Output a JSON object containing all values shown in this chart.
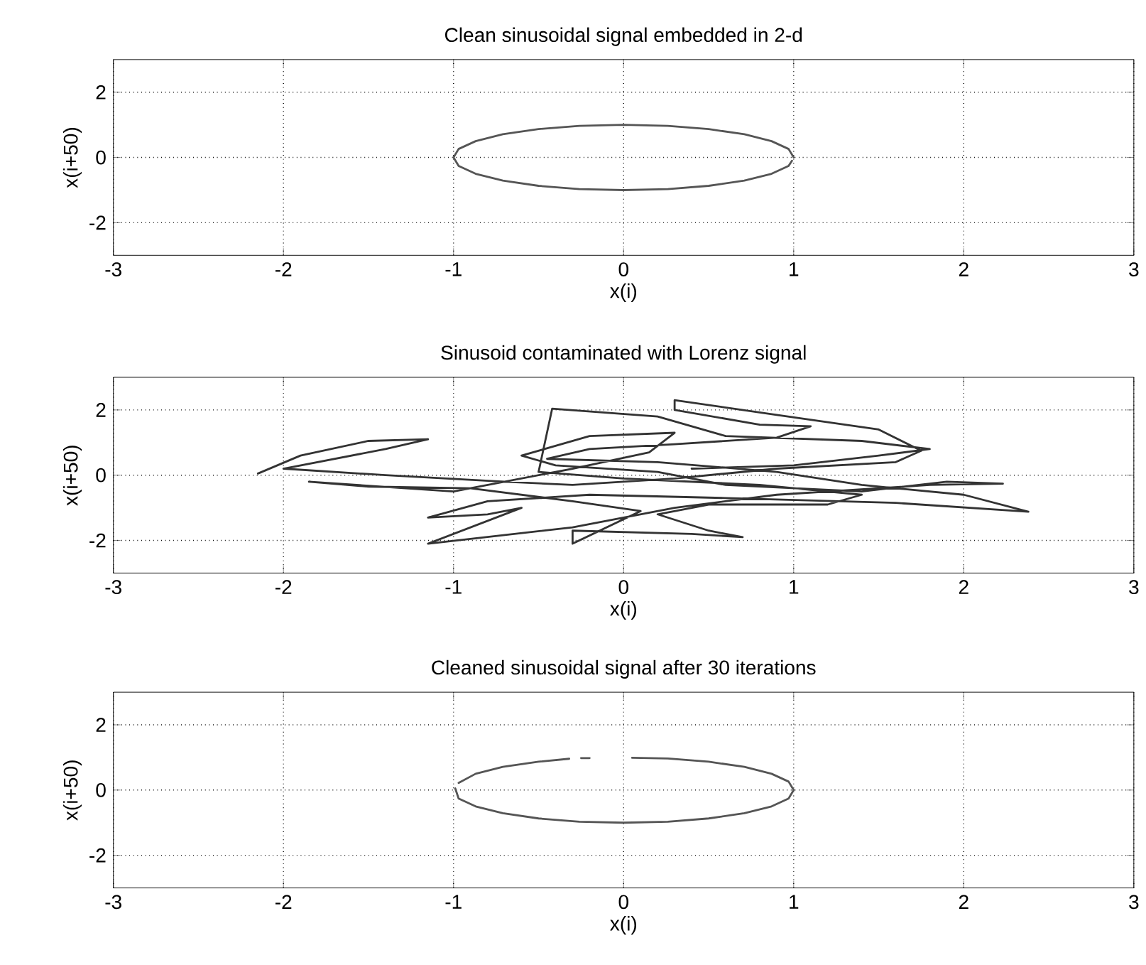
{
  "chart_data": [
    {
      "type": "line",
      "title": "Clean sinusoidal signal embedded in 2-d",
      "xlabel": "x(i)",
      "ylabel": "x(i+50)",
      "color": "#555555",
      "line_style": "solid",
      "grid": true,
      "xlim": [
        -3,
        3
      ],
      "ylim": [
        -3,
        3
      ],
      "xticks": [
        -3,
        -2,
        -1,
        0,
        1,
        2,
        3
      ],
      "yticks": [
        -2,
        0,
        2
      ],
      "x": [
        1,
        0.97,
        0.87,
        0.71,
        0.5,
        0.26,
        0,
        -0.26,
        -0.5,
        -0.71,
        -0.87,
        -0.97,
        -1,
        -0.97,
        -0.87,
        -0.71,
        -0.5,
        -0.26,
        0,
        0.26,
        0.5,
        0.71,
        0.87,
        0.97,
        0.99
      ],
      "values": [
        0,
        0.26,
        0.5,
        0.71,
        0.87,
        0.97,
        1,
        0.97,
        0.87,
        0.71,
        0.5,
        0.26,
        0,
        -0.26,
        -0.5,
        -0.71,
        -0.87,
        -0.97,
        -1,
        -0.97,
        -0.87,
        -0.71,
        -0.5,
        -0.26,
        -0.1
      ]
    },
    {
      "type": "line",
      "title": "Sinusoid contaminated with Lorenz signal",
      "xlabel": "x(i)",
      "ylabel": "x(i+50)",
      "color": "#333333",
      "line_style": "solid",
      "grid": true,
      "xlim": [
        -3,
        3
      ],
      "ylim": [
        -3,
        3
      ],
      "xticks": [
        -3,
        -2,
        -1,
        0,
        1,
        2,
        3
      ],
      "yticks": [
        -2,
        0,
        2
      ],
      "x": [
        -2.15,
        -1.9,
        -1.5,
        -1.15,
        -1.4,
        -2.0,
        -1.4,
        -0.7,
        -0.3,
        0.3,
        0.9,
        1.6,
        1.75,
        1.5,
        0.9,
        0.3,
        0.3,
        0.8,
        1.1,
        0.9,
        0.3,
        -0.2,
        -0.45,
        0.2,
        0.9,
        1.4,
        2.0,
        2.38,
        1.6,
        0.6,
        -0.2,
        -0.8,
        -1.15,
        -0.8,
        -0.6,
        -1.15,
        -0.3,
        0.3,
        0.9,
        1.8,
        2.23,
        1.9,
        1.4,
        0.6,
        0.2,
        -0.4,
        -0.6,
        -0.2,
        0.3,
        0.15,
        -0.3,
        -1.0,
        -1.85,
        -1.5,
        -0.9,
        -0.3,
        0.1,
        -0.3,
        -0.3,
        0.4,
        0.7,
        0.5,
        0.2,
        0.5,
        1.2,
        1.4,
        0.8,
        0.0,
        -0.5,
        -0.42,
        0.2,
        0.6,
        1.4,
        1.8,
        1.5,
        1.0,
        0.4
      ],
      "values": [
        0.05,
        0.6,
        1.05,
        1.1,
        0.8,
        0.2,
        0.0,
        -0.2,
        -0.3,
        -0.1,
        0.2,
        0.4,
        0.75,
        1.4,
        1.85,
        2.3,
        2.0,
        1.55,
        1.5,
        1.15,
        0.95,
        0.8,
        0.5,
        0.4,
        0.1,
        -0.3,
        -0.6,
        -1.12,
        -0.85,
        -0.7,
        -0.6,
        -0.8,
        -1.3,
        -1.2,
        -1.0,
        -2.1,
        -1.6,
        -1.0,
        -0.6,
        -0.3,
        -0.26,
        -0.2,
        -0.5,
        -0.3,
        0.1,
        0.3,
        0.6,
        1.2,
        1.3,
        0.7,
        0.2,
        -0.5,
        -0.2,
        -0.35,
        -0.4,
        -0.8,
        -1.1,
        -2.1,
        -1.7,
        -1.8,
        -1.9,
        -1.7,
        -1.2,
        -0.9,
        -0.9,
        -0.6,
        -0.3,
        -0.1,
        0.1,
        2.04,
        1.8,
        1.2,
        1.05,
        0.8,
        0.6,
        0.3,
        0.2
      ]
    },
    {
      "type": "line",
      "title": "Cleaned sinusoidal signal after 30 iterations",
      "xlabel": "x(i)",
      "ylabel": "x(i+50)",
      "color": "#555555",
      "line_style": "solid",
      "grid": true,
      "xlim": [
        -3,
        3
      ],
      "ylim": [
        -3,
        3
      ],
      "xticks": [
        -3,
        -2,
        -1,
        0,
        1,
        2,
        3
      ],
      "yticks": [
        -2,
        0,
        2
      ],
      "x": [
        -0.99,
        -0.97,
        -0.87,
        -0.71,
        -0.5,
        -0.26,
        0,
        0.26,
        0.5,
        0.71,
        0.87,
        0.97,
        1,
        0.97,
        0.87,
        0.71,
        0.5,
        0.26,
        0.05,
        null,
        -0.2,
        -0.25,
        null,
        -0.32,
        -0.5,
        -0.71,
        -0.87,
        -0.97
      ],
      "values": [
        0.05,
        -0.26,
        -0.5,
        -0.71,
        -0.87,
        -0.97,
        -1,
        -0.97,
        -0.87,
        -0.71,
        -0.5,
        -0.26,
        0,
        0.26,
        0.5,
        0.71,
        0.87,
        0.97,
        0.99,
        null,
        0.98,
        0.98,
        null,
        0.96,
        0.87,
        0.71,
        0.5,
        0.22
      ]
    }
  ]
}
